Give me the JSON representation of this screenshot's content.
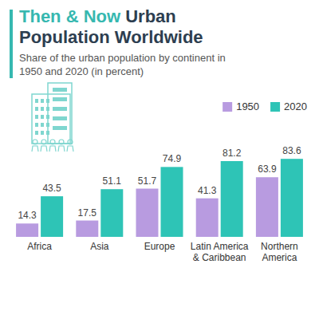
{
  "chart_data": {
    "type": "bar",
    "title": "Then & Now Urban Population Worldwide",
    "subtitle": "Share of the urban population by continent in 1950 and 2020 (in percent)",
    "categories": [
      "Africa",
      "Asia",
      "Europe",
      "Latin America & Caribbean",
      "Northern America"
    ],
    "series": [
      {
        "name": "1950",
        "color": "#b89be0",
        "values": [
          14.3,
          17.5,
          51.7,
          41.3,
          63.9
        ]
      },
      {
        "name": "2020",
        "color": "#2ec4b6",
        "values": [
          43.5,
          51.1,
          74.9,
          81.2,
          83.6
        ]
      }
    ],
    "ylim": [
      0,
      100
    ],
    "data_labels": true,
    "tick_labels": "x",
    "legend": "top-right",
    "grid": false
  }
}
